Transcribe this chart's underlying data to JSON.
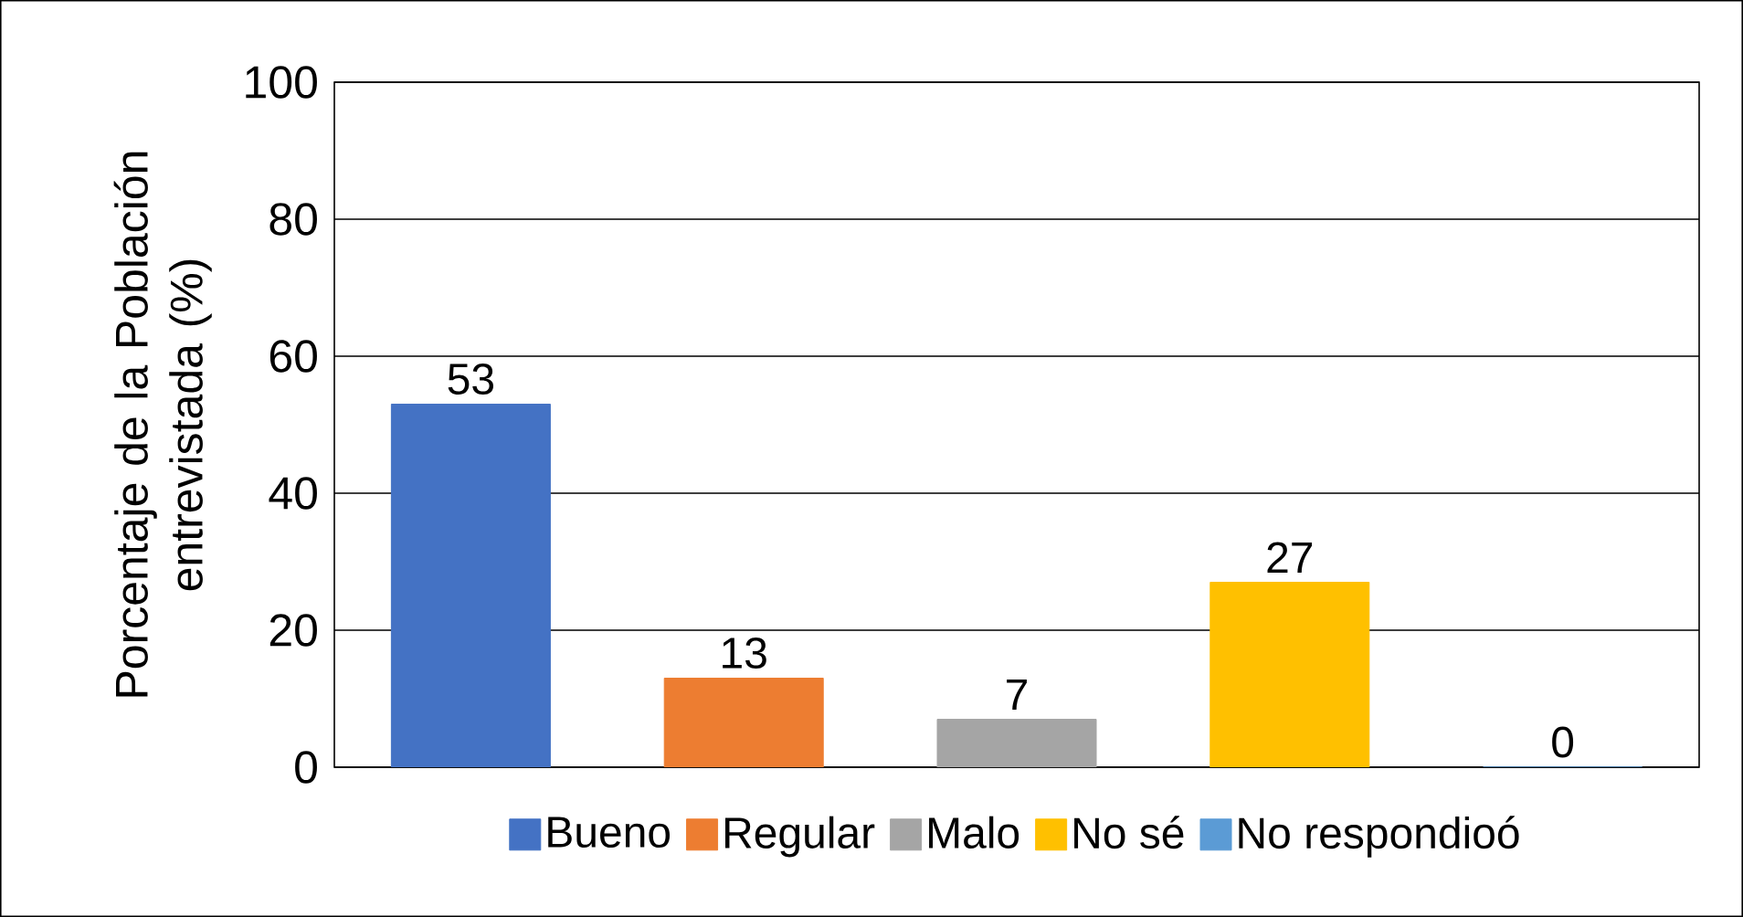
{
  "chart_data": {
    "type": "bar",
    "ylabel": "Porcentaje de la Población entrevistada (%)",
    "categories": [
      null,
      null,
      null,
      null,
      null
    ],
    "series": [
      {
        "name": "Bueno",
        "color": "#4472c4",
        "values": [
          53,
          null,
          null,
          null,
          null
        ]
      },
      {
        "name": "Regular",
        "color": "#ed7d31",
        "values": [
          null,
          13,
          null,
          null,
          null
        ]
      },
      {
        "name": "Malo",
        "color": "#a5a5a5",
        "values": [
          null,
          null,
          7,
          null,
          null
        ]
      },
      {
        "name": "No sé",
        "color": "#ffc000",
        "values": [
          null,
          null,
          null,
          27,
          null
        ]
      },
      {
        "name": "No respondioó",
        "color": "#5b9bd5",
        "values": [
          null,
          null,
          null,
          null,
          0
        ]
      }
    ],
    "ylim": [
      0,
      100
    ],
    "yticks": [
      0,
      20,
      40,
      60,
      80,
      100
    ],
    "grid": "y",
    "legend": "bottom",
    "data_labels": true
  }
}
